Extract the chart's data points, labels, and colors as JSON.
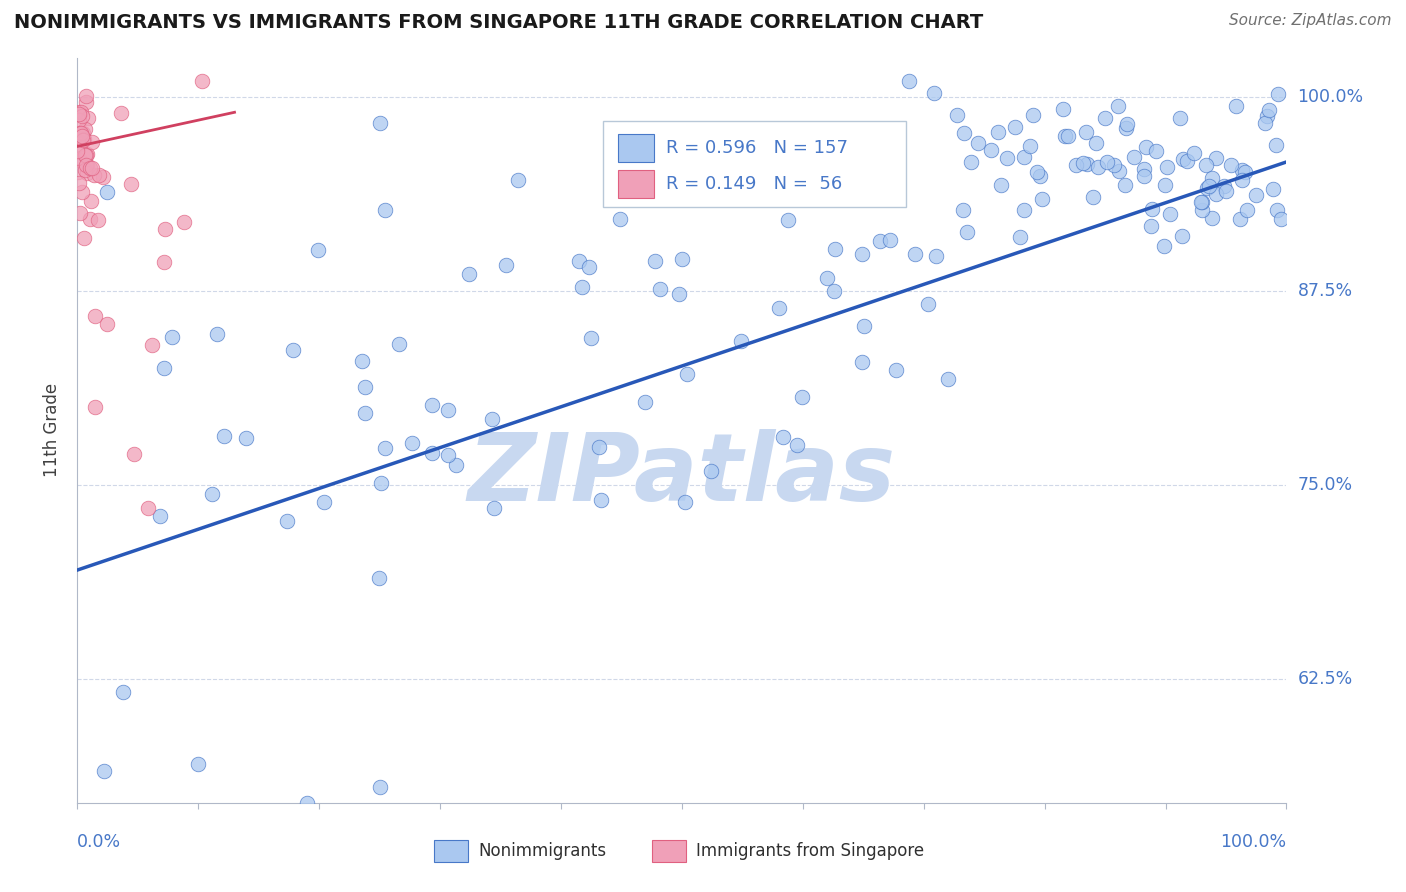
{
  "title": "NONIMMIGRANTS VS IMMIGRANTS FROM SINGAPORE 11TH GRADE CORRELATION CHART",
  "source": "Source: ZipAtlas.com",
  "ylabel": "11th Grade",
  "y_tick_labels": [
    "62.5%",
    "75.0%",
    "87.5%",
    "100.0%"
  ],
  "y_tick_values": [
    0.625,
    0.75,
    0.875,
    1.0
  ],
  "x_range": [
    0.0,
    1.0
  ],
  "y_range": [
    0.545,
    1.025
  ],
  "legend_blue_r": "R = 0.596",
  "legend_blue_n": "N = 157",
  "legend_pink_r": "R = 0.149",
  "legend_pink_n": "N =  56",
  "color_blue": "#aac8f0",
  "color_blue_dark": "#4878c8",
  "color_blue_line": "#2858b8",
  "color_pink": "#f0a0b8",
  "color_pink_dark": "#e06080",
  "color_pink_line": "#d04060",
  "color_text_blue": "#4878c8",
  "color_grid": "#d0d8e8",
  "color_axis": "#b0b8c8",
  "watermark_color": "#c8d8f0",
  "blue_line_x0": 0.0,
  "blue_line_y0": 0.695,
  "blue_line_x1": 1.0,
  "blue_line_y1": 0.958,
  "pink_line_x0": 0.0,
  "pink_line_y0": 0.968,
  "pink_line_x1": 0.13,
  "pink_line_y1": 0.99
}
